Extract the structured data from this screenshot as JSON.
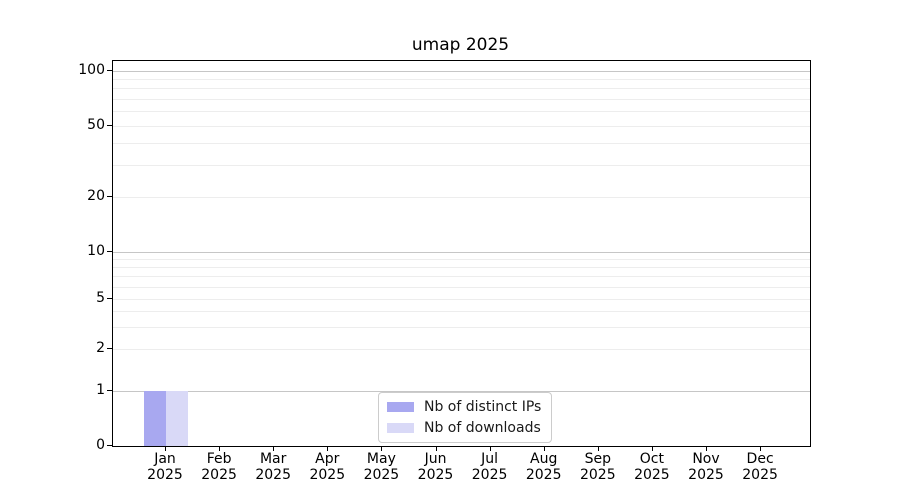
{
  "chart_data": {
    "type": "bar",
    "title": "umap 2025",
    "categories": [
      "Jan 2025",
      "Feb 2025",
      "Mar 2025",
      "Apr 2025",
      "May 2025",
      "Jun 2025",
      "Jul 2025",
      "Aug 2025",
      "Sep 2025",
      "Oct 2025",
      "Nov 2025",
      "Dec 2025"
    ],
    "series": [
      {
        "name": "Nb of distinct IPs",
        "values": [
          1,
          0,
          0,
          0,
          0,
          0,
          0,
          0,
          0,
          0,
          0,
          0
        ],
        "color": "#a8a8f0"
      },
      {
        "name": "Nb of downloads",
        "values": [
          1,
          0,
          0,
          0,
          0,
          0,
          0,
          0,
          0,
          0,
          0,
          0
        ],
        "color": "#d9d9f7"
      }
    ],
    "xlabel": "",
    "ylabel": "",
    "y_axis": {
      "scale": "log",
      "ticks": [
        100,
        50,
        20,
        10,
        5,
        2,
        1,
        0
      ],
      "ylim": [
        0,
        113
      ]
    },
    "grid": {
      "major_color": "#c6c6c6",
      "minor_color": "#ededed",
      "major_at": [
        100,
        10,
        1
      ],
      "minor_at": [
        90,
        80,
        70,
        60,
        50,
        40,
        30,
        20,
        9,
        8,
        7,
        6,
        5,
        4,
        3,
        2
      ]
    },
    "legend": {
      "position": "lower center",
      "entries": [
        "Nb of distinct IPs",
        "Nb of downloads"
      ]
    }
  }
}
